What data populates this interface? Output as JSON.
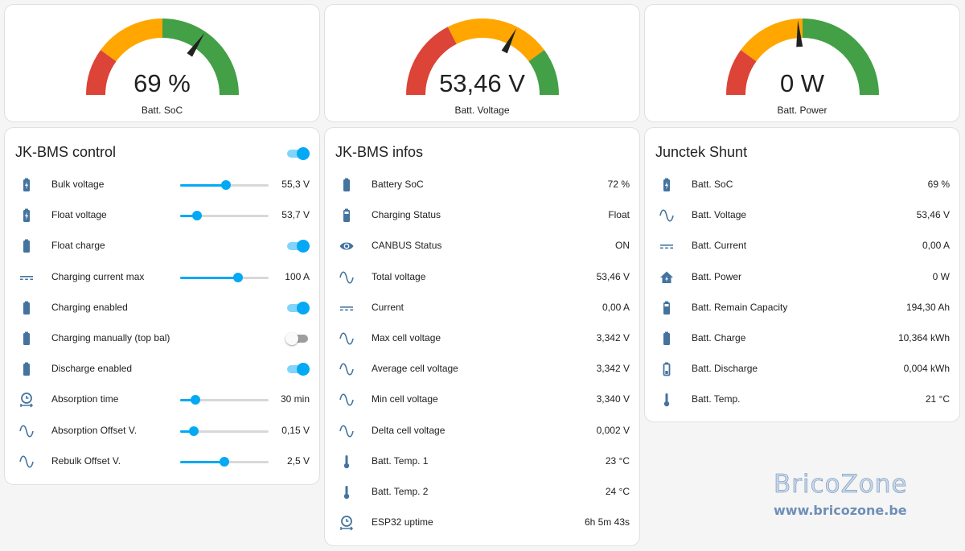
{
  "gauges": [
    {
      "value": "69 %",
      "label": "Batt. SoC",
      "fraction": 0.69,
      "segments": [
        0.2,
        0.5,
        1.0
      ]
    },
    {
      "value": "53,46 V",
      "label": "Batt. Voltage",
      "fraction": 0.65,
      "segments": [
        0.35,
        0.8,
        1.0
      ]
    },
    {
      "value": "0 W",
      "label": "Batt. Power",
      "fraction": 0.48,
      "segments": [
        0.2,
        0.5,
        1.0
      ]
    }
  ],
  "gauge_colors": {
    "red": "#db4437",
    "orange": "#ffa600",
    "green": "#43a047",
    "needle": "#212121"
  },
  "control": {
    "title": "JK-BMS control",
    "master_toggle": true,
    "rows": [
      {
        "label": "Bulk voltage",
        "icon": "battery-charging-icon",
        "type": "slider",
        "value": "55,3 V",
        "level": 0.52
      },
      {
        "label": "Float voltage",
        "icon": "battery-charging-icon",
        "type": "slider",
        "value": "53,7 V",
        "level": 0.19
      },
      {
        "label": "Float charge",
        "icon": "battery-icon",
        "type": "toggle",
        "on": true
      },
      {
        "label": "Charging current max",
        "icon": "current-dc-icon",
        "type": "slider",
        "value": "100 A",
        "level": 0.65
      },
      {
        "label": "Charging enabled",
        "icon": "battery-icon",
        "type": "toggle",
        "on": true
      },
      {
        "label": "Charging manually (top bal)",
        "icon": "battery-icon",
        "type": "toggle",
        "on": false
      },
      {
        "label": "Discharge enabled",
        "icon": "battery-icon",
        "type": "toggle",
        "on": true
      },
      {
        "label": "Absorption time",
        "icon": "timer-icon",
        "type": "slider",
        "value": "30 min",
        "level": 0.17
      },
      {
        "label": "Absorption Offset V.",
        "icon": "sine-wave-icon",
        "type": "slider",
        "value": "0,15 V",
        "level": 0.15
      },
      {
        "label": "Rebulk Offset V.",
        "icon": "sine-wave-icon",
        "type": "slider",
        "value": "2,5 V",
        "level": 0.5
      }
    ]
  },
  "infos": {
    "title": "JK-BMS infos",
    "rows": [
      {
        "label": "Battery SoC",
        "icon": "battery-icon",
        "value": "72 %"
      },
      {
        "label": "Charging Status",
        "icon": "battery-high-icon",
        "value": "Float"
      },
      {
        "label": "CANBUS Status",
        "icon": "eye-icon",
        "value": "ON"
      },
      {
        "label": "Total voltage",
        "icon": "sine-wave-icon",
        "value": "53,46 V"
      },
      {
        "label": "Current",
        "icon": "current-dc-icon",
        "value": "0,00 A"
      },
      {
        "label": "Max cell voltage",
        "icon": "sine-wave-icon",
        "value": "3,342 V"
      },
      {
        "label": "Average cell voltage",
        "icon": "sine-wave-icon",
        "value": "3,342 V"
      },
      {
        "label": "Min cell voltage",
        "icon": "sine-wave-icon",
        "value": "3,340 V"
      },
      {
        "label": "Delta cell voltage",
        "icon": "sine-wave-icon",
        "value": "0,002 V"
      },
      {
        "label": "Batt. Temp. 1",
        "icon": "thermometer-icon",
        "value": "23 °C"
      },
      {
        "label": "Batt. Temp. 2",
        "icon": "thermometer-icon",
        "value": "24 °C"
      },
      {
        "label": "ESP32 uptime",
        "icon": "timer-icon",
        "value": "6h 5m 43s"
      }
    ]
  },
  "shunt": {
    "title": "Junctek Shunt",
    "rows": [
      {
        "label": "Batt. SoC",
        "icon": "battery-charging-icon",
        "value": "69 %"
      },
      {
        "label": "Batt. Voltage",
        "icon": "sine-wave-icon",
        "value": "53,46 V"
      },
      {
        "label": "Batt. Current",
        "icon": "current-dc-icon",
        "value": "0,00 A"
      },
      {
        "label": "Batt. Power",
        "icon": "home-lightning-icon",
        "value": "0 W"
      },
      {
        "label": "Batt. Remain Capacity",
        "icon": "battery-high-icon",
        "value": "194,30 Ah"
      },
      {
        "label": "Batt. Charge",
        "icon": "battery-icon",
        "value": "10,364 kWh"
      },
      {
        "label": "Batt. Discharge",
        "icon": "battery-outline-icon",
        "value": "0,004 kWh"
      },
      {
        "label": "Batt. Temp.",
        "icon": "thermometer-icon",
        "value": "21 °C"
      }
    ]
  },
  "watermark": {
    "title": "BricoZone",
    "url": "www.bricozone.be"
  },
  "icon_color": "#44739e",
  "accent": "#03a9f4"
}
